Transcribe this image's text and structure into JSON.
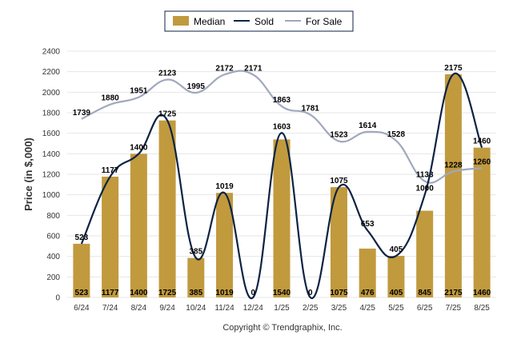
{
  "chart_data": {
    "type": "bar",
    "categories": [
      "6/24",
      "7/24",
      "8/24",
      "9/24",
      "10/24",
      "11/24",
      "12/24",
      "1/25",
      "2/25",
      "3/25",
      "4/25",
      "5/25",
      "6/25",
      "7/25",
      "8/25"
    ],
    "ylabel": "Price (in $,000)",
    "ylim": [
      0,
      2400
    ],
    "yticks": [
      0,
      200,
      400,
      600,
      800,
      1000,
      1200,
      1400,
      1600,
      1800,
      2000,
      2200,
      2400
    ],
    "grid": true,
    "legend_position": "top-center",
    "series": [
      {
        "name": "Median",
        "type": "bar",
        "color": "#C19A3E",
        "values": [
          523,
          1177,
          1400,
          1725,
          385,
          1019,
          0,
          1540,
          0,
          1075,
          476,
          405,
          845,
          2175,
          1460
        ]
      },
      {
        "name": "Sold",
        "type": "line",
        "color": "#0D2344",
        "values": [
          523,
          1177,
          1400,
          1725,
          385,
          1019,
          0,
          1603,
          0,
          1075,
          653,
          405,
          1000,
          2175,
          1460
        ]
      },
      {
        "name": "For Sale",
        "type": "line",
        "color": "#A0A8BE",
        "values": [
          1739,
          1880,
          1951,
          2123,
          1995,
          2172,
          2171,
          1863,
          1781,
          1523,
          1614,
          1528,
          1133,
          1228,
          1260
        ]
      }
    ]
  },
  "footer": {
    "copyright": "Copyright © Trendgraphix, Inc."
  }
}
